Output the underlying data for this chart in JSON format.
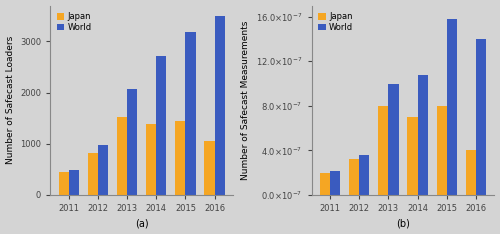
{
  "years": [
    "2011",
    "2012",
    "2013",
    "2014",
    "2015",
    "2016"
  ],
  "loaders_japan": [
    450,
    820,
    1520,
    1380,
    1450,
    1050
  ],
  "loaders_world": [
    490,
    980,
    2060,
    2720,
    3180,
    3500
  ],
  "measurements_japan": [
    20000000.0,
    32000000.0,
    80000000.0,
    70000000.0,
    80000000.0,
    40000000.0
  ],
  "measurements_world": [
    21000000.0,
    36000000.0,
    100000000.0,
    108000000.0,
    158000000.0,
    140000000.0
  ],
  "color_japan": "#f5a623",
  "color_world": "#3a5bbf",
  "bg_color": "#d4d4d4",
  "ylabel_a": "Number of Safecast Loaders",
  "ylabel_b": "Number of Safecast Measurements",
  "xlabel_a": "(a)",
  "xlabel_b": "(b)",
  "ylim_a": [
    0,
    3700
  ],
  "yticks_a": [
    0,
    1000,
    2000,
    3000
  ],
  "ylim_b": [
    0,
    170000000.0
  ],
  "yticks_b": [
    0.0,
    40000000.0,
    80000000.0,
    120000000.0,
    160000000.0
  ],
  "legend_labels": [
    "Japan",
    "World"
  ],
  "tick_fontsize": 6.0,
  "label_fontsize": 6.5
}
